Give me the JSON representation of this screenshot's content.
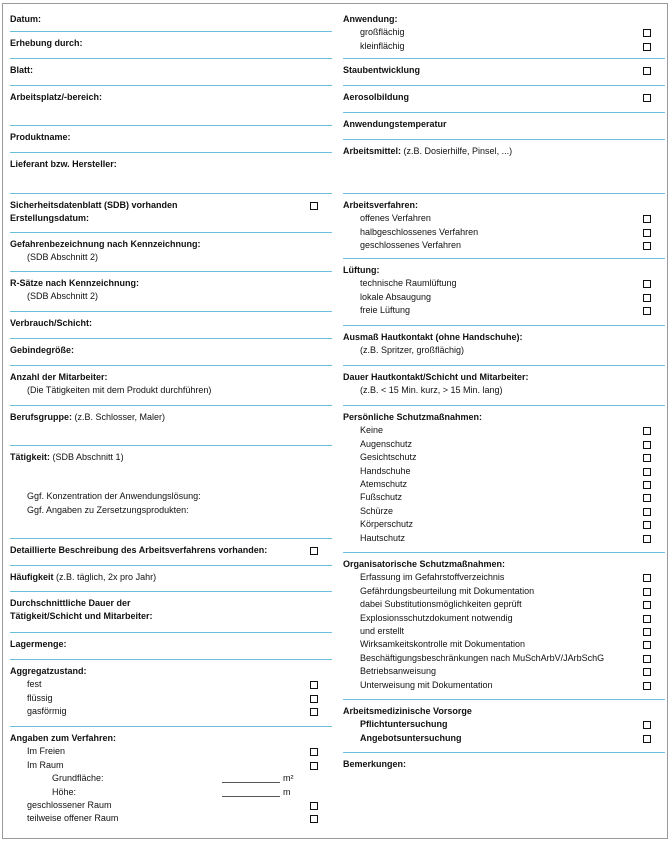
{
  "left": [
    {
      "title": "Datum:"
    },
    {
      "title": "Erhebung durch:"
    },
    {
      "title": "Blatt:"
    },
    {
      "title": "Arbeitsplatz/-bereich:"
    },
    {
      "title": "Produktname:"
    },
    {
      "title": "Lieferant bzw. Hersteller:"
    },
    {
      "title": "Sicherheitsdatenblatt (SDB) vorhanden",
      "checkbox": true,
      "subtitle": "Erstellungsdatum:"
    },
    {
      "title": "Gefahrenbezeichnung nach Kennzeichnung:",
      "notes": [
        "(SDB Abschnitt 2)"
      ]
    },
    {
      "title": "R-Sätze nach Kennzeichnung:",
      "notes": [
        "(SDB Abschnitt 2)"
      ]
    },
    {
      "title": "Verbrauch/Schicht:"
    },
    {
      "title": "Gebindegröße:"
    },
    {
      "title": "Anzahl der Mitarbeiter:",
      "notes": [
        "(Die Tätigkeiten mit dem Produkt durchführen)"
      ]
    },
    {
      "title": "Berufsgruppe:",
      "inline_note": "(z.B. Schlosser, Maler)"
    },
    {
      "title": "Tätigkeit:",
      "inline_note": "(SDB Abschnitt 1)",
      "details": [
        "Ggf. Konzentration der Anwendungslösung:",
        "Ggf. Angaben zu Zersetzungsprodukten:"
      ]
    },
    {
      "title": "Detaillierte Beschreibung des Arbeitsverfahrens vorhanden:",
      "checkbox": true
    },
    {
      "title": "Häufigkeit",
      "inline_note": "(z.B. täglich, 2x pro Jahr)"
    },
    {
      "title": "Durchschnittliche Dauer der",
      "subtitle": "Tätigkeit/Schicht und Mitarbeiter:"
    },
    {
      "title": "Lagermenge:"
    },
    {
      "title": "Aggregatzustand:",
      "items": [
        {
          "label": "fest",
          "checkbox": true
        },
        {
          "label": "flüssig",
          "checkbox": true
        },
        {
          "label": "gasförmig",
          "checkbox": true
        }
      ]
    },
    {
      "title": "Angaben zum Verfahren:",
      "items": [
        {
          "label": "Im Freien",
          "checkbox": true
        },
        {
          "label": "Im Raum",
          "checkbox": true
        },
        {
          "label": "Grundfläche:",
          "unit": "m²"
        },
        {
          "label": "Höhe:",
          "unit": "m"
        },
        {
          "label": "geschlossener Raum",
          "checkbox": true
        },
        {
          "label": "teilweise offener Raum",
          "checkbox": true
        }
      ]
    }
  ],
  "right": [
    {
      "title": "Anwendung:",
      "items": [
        {
          "label": "großflächig",
          "checkbox": true
        },
        {
          "label": "kleinflächig",
          "checkbox": true
        }
      ]
    },
    {
      "title": "Staubentwicklung",
      "checkbox": true
    },
    {
      "title": "Aerosolbildung",
      "checkbox": true
    },
    {
      "title": "Anwendungstemperatur"
    },
    {
      "title": "Arbeitsmittel:",
      "inline_note": "(z.B. Dosierhilfe, Pinsel, ...)"
    },
    {
      "title": "Arbeitsverfahren:",
      "items": [
        {
          "label": "offenes Verfahren",
          "checkbox": true
        },
        {
          "label": "halbgeschlossenes Verfahren",
          "checkbox": true
        },
        {
          "label": "geschlossenes Verfahren",
          "checkbox": true
        }
      ]
    },
    {
      "title": "Lüftung:",
      "items": [
        {
          "label": "technische Raumlüftung",
          "checkbox": true
        },
        {
          "label": "lokale Absaugung",
          "checkbox": true
        },
        {
          "label": "freie Lüftung",
          "checkbox": true
        }
      ]
    },
    {
      "title": "Ausmaß Hautkontakt (ohne Handschuhe):",
      "notes": [
        "(z.B. Spritzer, großflächig)"
      ]
    },
    {
      "title": "Dauer Hautkontakt/Schicht und Mitarbeiter:",
      "notes": [
        "(z.B. < 15 Min. kurz, > 15 Min. lang)"
      ]
    },
    {
      "title": "Persönliche Schutzmaßnahmen:",
      "items": [
        {
          "label": "Keine",
          "checkbox": true
        },
        {
          "label": "Augenschutz",
          "checkbox": true
        },
        {
          "label": "Gesichtschutz",
          "checkbox": true
        },
        {
          "label": "Handschuhe",
          "checkbox": true
        },
        {
          "label": "Atemschutz",
          "checkbox": true
        },
        {
          "label": "Fußschutz",
          "checkbox": true
        },
        {
          "label": "Schürze",
          "checkbox": true
        },
        {
          "label": "Körperschutz",
          "checkbox": true
        },
        {
          "label": "Hautschutz",
          "checkbox": true
        }
      ]
    },
    {
      "title": "Organisatorische Schutzmaßnahmen:",
      "items": [
        {
          "label": "Erfassung im Gefahrstoffverzeichnis",
          "checkbox": true
        },
        {
          "label": "Gefährdungsbeurteilung mit Dokumentation",
          "checkbox": true
        },
        {
          "label": "dabei Substitutionsmöglichkeiten geprüft",
          "checkbox": true
        },
        {
          "label": "Explosionsschutzdokument notwendig",
          "checkbox": true
        },
        {
          "label": "und erstellt",
          "checkbox": true
        },
        {
          "label": "Wirksamkeitskontrolle mit Dokumentation",
          "checkbox": true
        },
        {
          "label": "Beschäftigungsbeschränkungen nach MuSchArbV/JArbSchG",
          "checkbox": true
        },
        {
          "label": "Betriebsanweisung",
          "checkbox": true
        },
        {
          "label": "Unterweisung mit Dokumentation",
          "checkbox": true
        }
      ]
    },
    {
      "title": "Arbeitsmedizinische Vorsorge",
      "items": [
        {
          "label": "Pflichtuntersuchung",
          "checkbox": true,
          "bold": true
        },
        {
          "label": "Angebotsuntersuchung",
          "checkbox": true,
          "bold": true
        }
      ]
    },
    {
      "title": "Bemerkungen:"
    }
  ]
}
